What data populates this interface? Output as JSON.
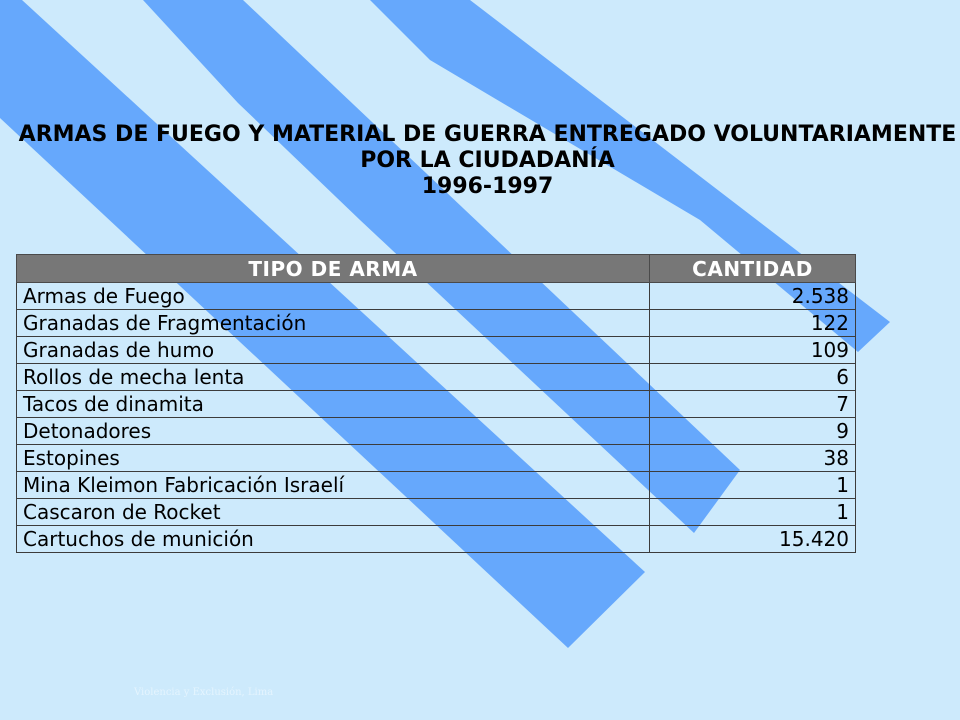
{
  "title": {
    "line1": "ARMAS DE FUEGO Y MATERIAL DE GUERRA ENTREGADO VOLUNTARIAMENTE",
    "line2": "POR LA CIUDADANÍA",
    "line3": "1996-1997"
  },
  "table": {
    "headers": [
      "TIPO DE ARMA",
      "CANTIDAD"
    ],
    "rows": [
      {
        "tipo": "Armas de Fuego",
        "cantidad": "2.538"
      },
      {
        "tipo": "Granadas de Fragmentación",
        "cantidad": "122"
      },
      {
        "tipo": "Granadas de humo",
        "cantidad": "109"
      },
      {
        "tipo": "Rollos de mecha lenta",
        "cantidad": "6"
      },
      {
        "tipo": "Tacos de dinamita",
        "cantidad": "7"
      },
      {
        "tipo": "Detonadores",
        "cantidad": "9"
      },
      {
        "tipo": "Estopines",
        "cantidad": "38"
      },
      {
        "tipo": "Mina Kleimon Fabricación Israelí",
        "cantidad": "1"
      },
      {
        "tipo": "Cascaron de Rocket",
        "cantidad": "1"
      },
      {
        "tipo": "Cartuchos de munición",
        "cantidad": "15.420"
      }
    ]
  },
  "footer": "Violencia y Exclusión, Lima",
  "colors": {
    "background": "#cdeafc",
    "stripe": "#66a8fc",
    "header": "#777777"
  }
}
